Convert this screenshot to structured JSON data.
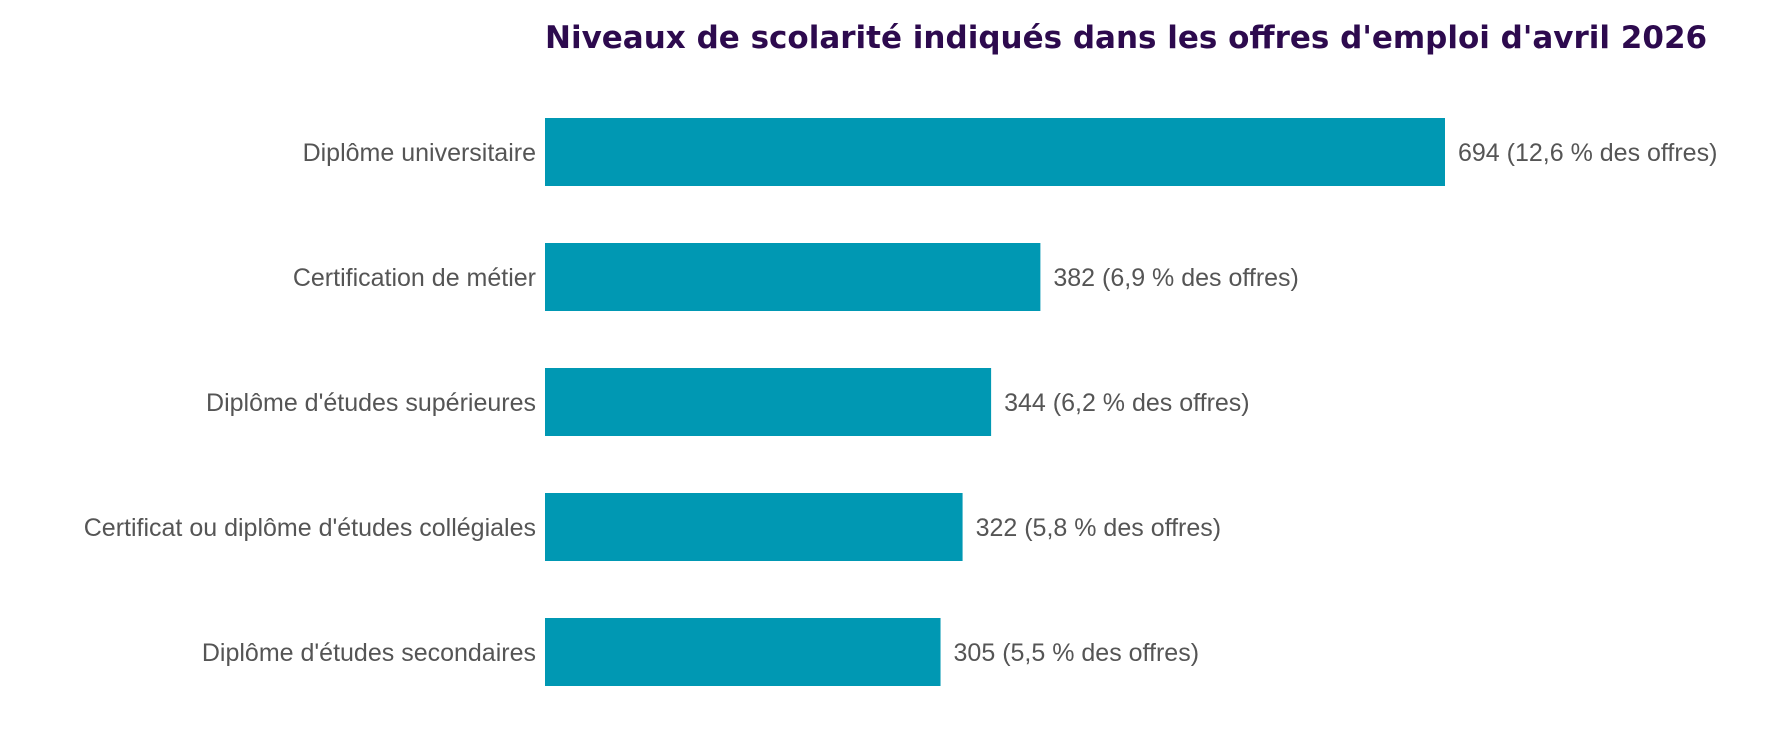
{
  "chart_data": {
    "type": "bar",
    "orientation": "horizontal",
    "title": "Niveaux de scolarité indiqués dans les offres d'emploi d'avril 2026",
    "xlabel": "",
    "ylabel": "",
    "categories": [
      "Diplôme universitaire",
      "Certification de métier",
      "Diplôme d'études supérieures",
      "Certificat ou diplôme d'études collégiales",
      "Diplôme d'études secondaires"
    ],
    "values": [
      694,
      382,
      344,
      322,
      305
    ],
    "value_labels": [
      "694  (12,6 % des offres)",
      "382  (6,9 % des offres)",
      "344  (6,2 % des offres)",
      "322  (5,8 % des offres)",
      "305  (5,5 % des offres)"
    ],
    "xlim": [
      0,
      694
    ],
    "grid": false,
    "legend": "none",
    "colors": {
      "bar": "#0098B3",
      "title": "#2D0A4E",
      "text": "#555555"
    }
  }
}
